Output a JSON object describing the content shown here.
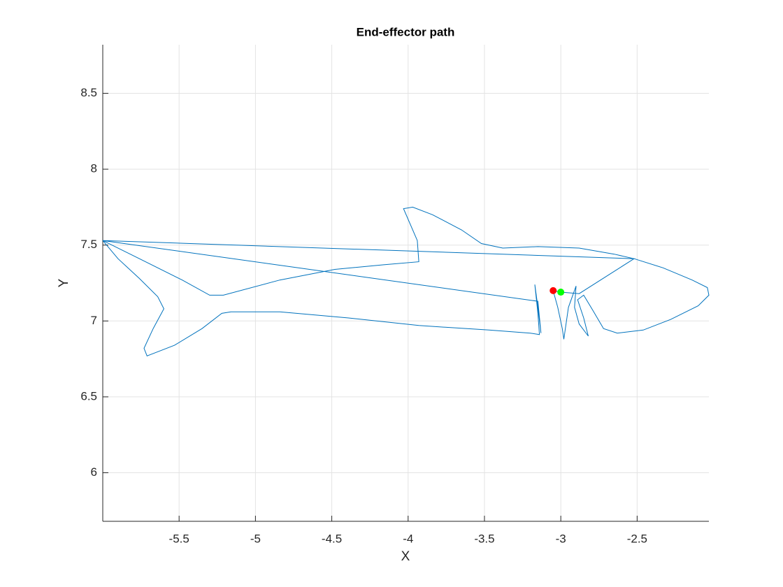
{
  "chart_data": {
    "type": "line",
    "title": "End-effector path",
    "x_label": "X",
    "y_label": "Y",
    "xlim": [
      -6.0,
      -2.03
    ],
    "ylim": [
      5.68,
      8.82
    ],
    "xticks": [
      -5.5,
      -5,
      -4.5,
      -4,
      -3.5,
      -3,
      -2.5
    ],
    "yticks": [
      6,
      6.5,
      7,
      7.5,
      8,
      8.5
    ],
    "grid": true,
    "series": [
      {
        "color": "#0072bd",
        "x": [
          -6.0,
          -5.76,
          -5.48,
          -5.3,
          -5.21,
          -4.84,
          -4.48,
          -4.16,
          -3.93,
          -3.94,
          -4.03,
          -3.97,
          -3.84,
          -3.65,
          -3.52,
          -3.38,
          -3.15,
          -2.88,
          -2.65,
          -2.52,
          -2.33,
          -2.14,
          -2.04,
          -2.03,
          -2.1,
          -2.28,
          -2.46,
          -2.63,
          -2.72,
          -2.79,
          -2.85,
          -2.89,
          -2.85,
          -2.82,
          -2.88,
          -2.91,
          -2.9,
          -2.95,
          -2.98,
          -2.99,
          -3.02,
          -3.05,
          -3.0,
          -2.88,
          -2.52,
          -6.0,
          -3.15,
          -3.13,
          -3.15,
          -3.17,
          -3.15,
          -3.14,
          -3.2,
          -3.47,
          -3.93,
          -4.39,
          -4.84,
          -5.16,
          -5.22,
          -5.35,
          -5.53,
          -5.71,
          -5.73,
          -5.67,
          -5.6,
          -5.64,
          -5.76,
          -5.9,
          -6.0
        ],
        "y": [
          7.53,
          7.41,
          7.27,
          7.17,
          7.17,
          7.27,
          7.34,
          7.37,
          7.39,
          7.53,
          7.74,
          7.75,
          7.7,
          7.6,
          7.51,
          7.48,
          7.49,
          7.48,
          7.44,
          7.41,
          7.35,
          7.27,
          7.22,
          7.17,
          7.1,
          7.01,
          6.94,
          6.92,
          6.95,
          7.07,
          7.17,
          7.14,
          7.02,
          6.9,
          6.98,
          7.09,
          7.23,
          7.09,
          6.88,
          6.95,
          7.09,
          7.2,
          7.19,
          7.18,
          7.41,
          7.53,
          7.13,
          6.92,
          7.09,
          7.24,
          7.05,
          6.91,
          6.92,
          6.94,
          6.97,
          7.02,
          7.06,
          7.06,
          7.05,
          6.95,
          6.84,
          6.77,
          6.82,
          6.95,
          7.08,
          7.16,
          7.28,
          7.41,
          7.53
        ]
      }
    ],
    "markers": [
      {
        "color": "#ff0000",
        "x": -3.05,
        "y": 7.2
      },
      {
        "color": "#00ff00",
        "x": -3.0,
        "y": 7.19
      }
    ]
  }
}
